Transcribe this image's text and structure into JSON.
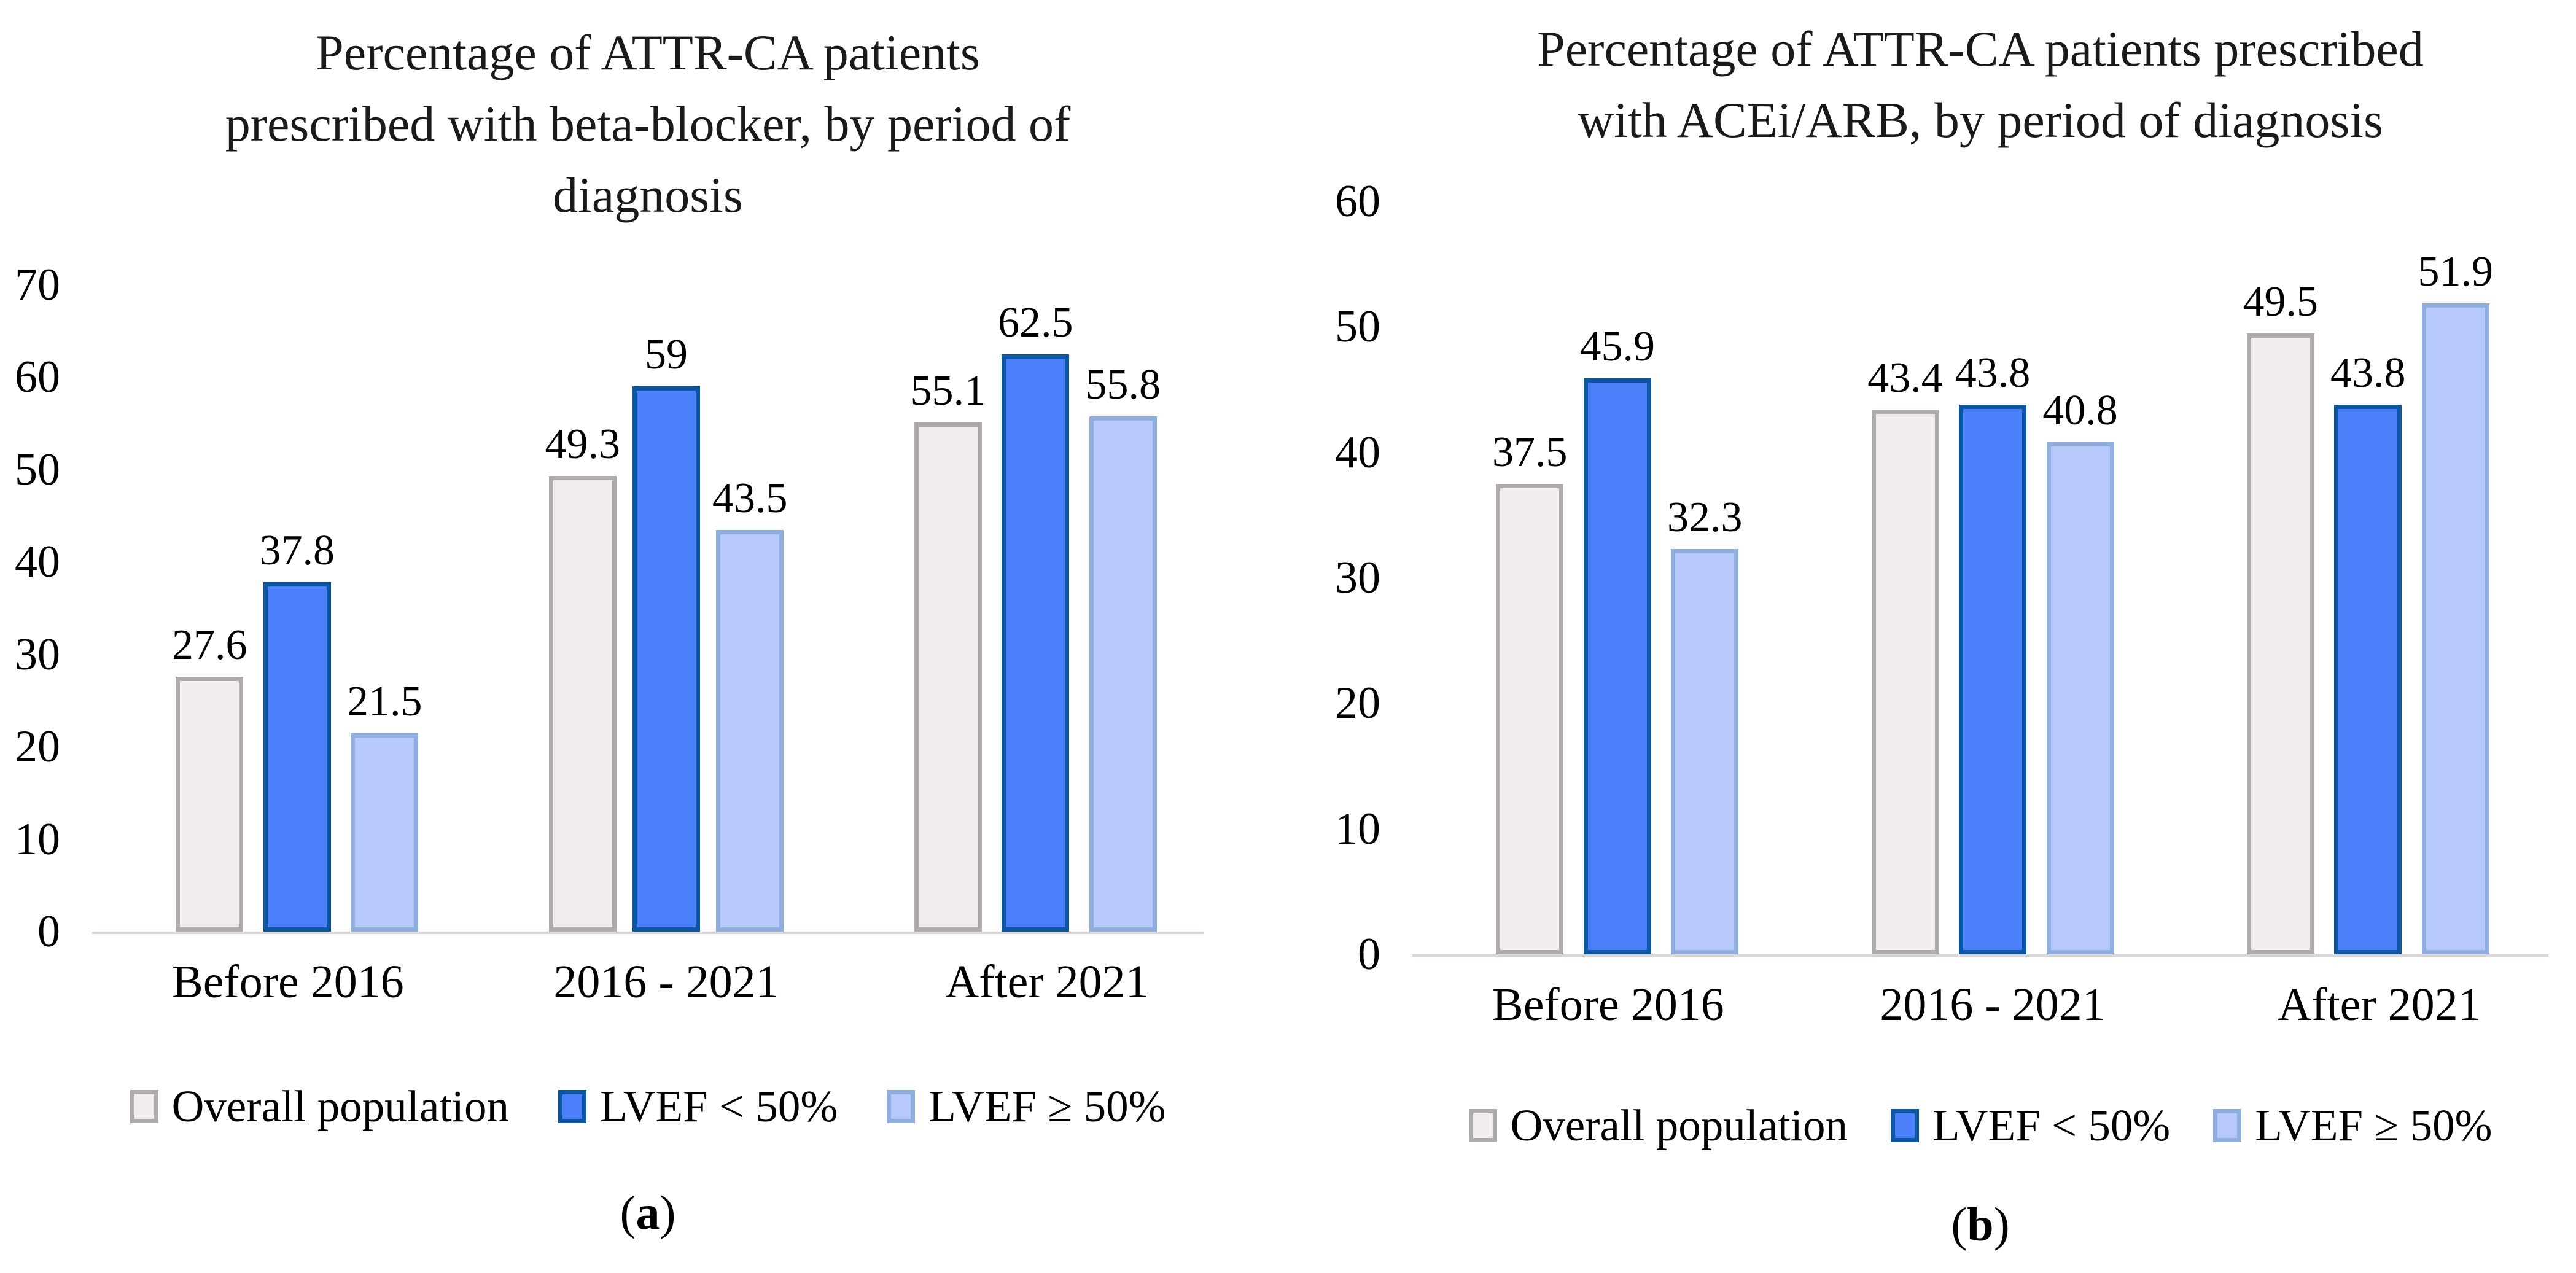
{
  "chart_data": [
    {
      "type": "bar",
      "panel": "a",
      "title": "Percentage of ATTR-CA patients prescribed with beta-blocker, by period of diagnosis",
      "title_lines": [
        "Percentage of ATTR-CA patients",
        "prescribed with beta-blocker, by period of",
        "diagnosis"
      ],
      "categories": [
        "Before 2016",
        "2016 - 2021",
        "After 2021"
      ],
      "series": [
        {
          "name": "Overall population",
          "values": [
            27.6,
            49.3,
            55.1
          ],
          "fill": "#F0EDEC",
          "border": "#AFABAA"
        },
        {
          "name": "LVEF < 50%",
          "values": [
            37.8,
            59,
            62.5
          ],
          "fill": "#4B80FA",
          "border": "#0B57A3"
        },
        {
          "name": "LVEF ≥ 50%",
          "values": [
            21.5,
            43.5,
            55.8
          ],
          "fill": "#B7C8FA",
          "border": "#8EAFDE"
        }
      ],
      "ylim": [
        0,
        70
      ],
      "yticks": [
        0,
        10,
        20,
        30,
        40,
        50,
        60,
        70
      ],
      "grid": false,
      "legend_position": "bottom",
      "axis_line_color": "#D9D6D5",
      "caption": {
        "open": "(",
        "letter": "a",
        "close": ")"
      }
    },
    {
      "type": "bar",
      "panel": "b",
      "title": "Percentage of ATTR-CA patients prescribed with ACEi/ARB, by period of diagnosis",
      "title_lines": [
        "Percentage of ATTR-CA patients prescribed",
        "with ACEi/ARB, by period of diagnosis"
      ],
      "categories": [
        "Before 2016",
        "2016 - 2021",
        "After 2021"
      ],
      "series": [
        {
          "name": "Overall population",
          "values": [
            37.5,
            43.4,
            49.5
          ],
          "fill": "#F0EDEC",
          "border": "#AFABAA"
        },
        {
          "name": "LVEF < 50%",
          "values": [
            45.9,
            43.8,
            43.8
          ],
          "fill": "#4B80FA",
          "border": "#0B57A3"
        },
        {
          "name": "LVEF ≥ 50%",
          "values": [
            32.3,
            40.8,
            51.9
          ],
          "fill": "#B7C8FA",
          "border": "#8EAFDE"
        }
      ],
      "ylim": [
        0,
        60
      ],
      "yticks": [
        0,
        10,
        20,
        30,
        40,
        50,
        60
      ],
      "grid": false,
      "legend_position": "bottom",
      "axis_line_color": "#D9D6D5",
      "caption": {
        "open": "(",
        "letter": "b",
        "close": ")"
      }
    }
  ]
}
